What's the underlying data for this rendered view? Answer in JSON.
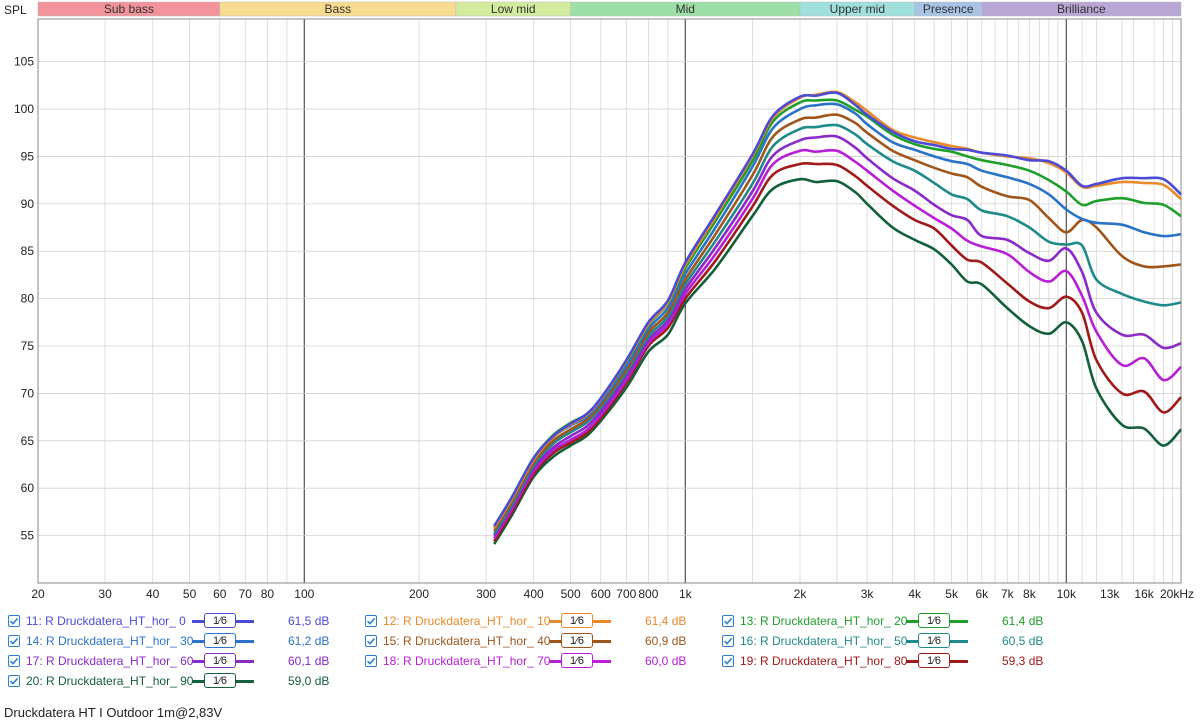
{
  "chart_data": {
    "type": "line",
    "ylabel": "SPL",
    "xscale": "log",
    "xlim": [
      20,
      20000
    ],
    "ylim": [
      50,
      109.5
    ],
    "yticks": [
      55,
      60,
      65,
      70,
      75,
      80,
      85,
      90,
      95,
      100,
      105
    ],
    "xticks": [
      {
        "v": 20,
        "label": "20"
      },
      {
        "v": 30,
        "label": "30"
      },
      {
        "v": 40,
        "label": "40"
      },
      {
        "v": 50,
        "label": "50"
      },
      {
        "v": 60,
        "label": "60"
      },
      {
        "v": 70,
        "label": "70"
      },
      {
        "v": 80,
        "label": "80"
      },
      {
        "v": 100,
        "label": "100"
      },
      {
        "v": 200,
        "label": "200"
      },
      {
        "v": 300,
        "label": "300"
      },
      {
        "v": 400,
        "label": "400"
      },
      {
        "v": 500,
        "label": "500"
      },
      {
        "v": 600,
        "label": "600"
      },
      {
        "v": 700,
        "label": "700"
      },
      {
        "v": 800,
        "label": "800"
      },
      {
        "v": 1000,
        "label": "1k"
      },
      {
        "v": 2000,
        "label": "2k"
      },
      {
        "v": 3000,
        "label": "3k"
      },
      {
        "v": 4000,
        "label": "4k"
      },
      {
        "v": 5000,
        "label": "5k"
      },
      {
        "v": 6000,
        "label": "6k"
      },
      {
        "v": 7000,
        "label": "7k"
      },
      {
        "v": 8000,
        "label": "8k"
      },
      {
        "v": 10000,
        "label": "10k"
      },
      {
        "v": 13000,
        "label": "13k"
      },
      {
        "v": 16000,
        "label": "16k"
      },
      {
        "v": 20000,
        "label": "20kHz"
      }
    ],
    "bands": [
      {
        "name": "Sub bass",
        "from": 20,
        "to": 60,
        "color": "#f2939b"
      },
      {
        "name": "Bass",
        "from": 60,
        "to": 250,
        "color": "#f7dc8f"
      },
      {
        "name": "Low mid",
        "from": 250,
        "to": 500,
        "color": "#d3eb9c"
      },
      {
        "name": "Mid",
        "from": 500,
        "to": 2000,
        "color": "#9ddfa7"
      },
      {
        "name": "Upper mid",
        "from": 2000,
        "to": 4000,
        "color": "#9fdfdc"
      },
      {
        "name": "Presence",
        "from": 4000,
        "to": 6000,
        "color": "#a9c3e7"
      },
      {
        "name": "Brilliance",
        "from": 6000,
        "to": 20000,
        "color": "#b8a7d4"
      }
    ],
    "x": [
      315,
      350,
      400,
      450,
      500,
      550,
      600,
      700,
      800,
      900,
      1000,
      1200,
      1500,
      1700,
      2000,
      2200,
      2500,
      2800,
      3000,
      3500,
      4000,
      4500,
      5000,
      5500,
      6000,
      7000,
      8000,
      9000,
      10000,
      11000,
      12000,
      14000,
      16000,
      18000,
      20000
    ],
    "series": [
      {
        "name": "11: R Druckdatera_HT_hor_ 0",
        "color": "#4b4bd6",
        "db": "61,5 dB",
        "values": [
          56.0,
          59.0,
          63.2,
          65.5,
          66.8,
          67.8,
          69.5,
          73.5,
          77.5,
          79.8,
          83.8,
          88.9,
          95.2,
          99.3,
          101.3,
          101.4,
          101.7,
          100.4,
          99.4,
          97.6,
          96.6,
          96.2,
          95.8,
          95.7,
          95.4,
          95.1,
          94.6,
          94.5,
          93.5,
          91.9,
          92.1,
          92.7,
          92.7,
          92.6,
          91.0
        ]
      },
      {
        "name": "12: R Druckdatera_HT_hor_ 10",
        "color": "#e8892a",
        "db": "61,4 dB",
        "values": [
          55.8,
          58.8,
          63.0,
          65.4,
          66.7,
          67.7,
          69.4,
          73.4,
          77.3,
          79.6,
          83.5,
          88.6,
          95.0,
          99.1,
          101.2,
          101.5,
          101.8,
          100.7,
          99.8,
          97.8,
          97.0,
          96.5,
          96.1,
          95.8,
          95.4,
          95.0,
          94.8,
          94.3,
          93.3,
          91.8,
          91.9,
          92.3,
          92.2,
          92.0,
          90.5
        ]
      },
      {
        "name": "13: R Druckdatera_HT_hor_ 20",
        "color": "#1e9e2a",
        "db": "61,4 dB",
        "values": [
          56.0,
          59.0,
          63.2,
          65.6,
          66.9,
          67.8,
          69.4,
          73.3,
          77.2,
          79.5,
          83.2,
          88.2,
          94.5,
          98.7,
          100.7,
          100.9,
          100.9,
          99.9,
          99.2,
          97.3,
          96.3,
          95.8,
          95.5,
          95.0,
          94.6,
          94.1,
          93.5,
          92.5,
          91.3,
          89.9,
          90.3,
          90.6,
          90.1,
          89.9,
          88.7
        ]
      },
      {
        "name": "14: R Druckdatera_HT_hor_ 30",
        "color": "#2a73c8",
        "db": "61,2 dB",
        "values": [
          55.8,
          58.8,
          63.0,
          65.4,
          66.6,
          67.5,
          69.1,
          72.9,
          76.8,
          79.0,
          82.6,
          87.5,
          93.9,
          98.0,
          100.0,
          100.4,
          100.5,
          99.5,
          98.4,
          96.5,
          95.7,
          95.0,
          94.5,
          94.2,
          93.5,
          92.8,
          92.1,
          91.0,
          89.4,
          88.4,
          88.0,
          87.8,
          87.0,
          86.6,
          86.8
        ]
      },
      {
        "name": "15: R Druckdatera_HT_hor_ 40",
        "color": "#a0561b",
        "db": "60,9 dB",
        "values": [
          55.5,
          58.5,
          62.7,
          65.0,
          66.2,
          67.2,
          68.8,
          72.5,
          76.4,
          78.5,
          82.0,
          86.8,
          93.0,
          97.1,
          98.9,
          99.1,
          99.4,
          98.5,
          97.5,
          95.6,
          94.6,
          93.8,
          93.2,
          92.8,
          91.8,
          90.8,
          90.4,
          88.5,
          87.0,
          88.3,
          87.5,
          84.5,
          83.4,
          83.4,
          83.6
        ]
      },
      {
        "name": "16: R Druckdatera_HT_hor_ 50",
        "color": "#1f8a8a",
        "db": "60,5 dB",
        "values": [
          55.2,
          58.2,
          62.4,
          64.7,
          65.9,
          66.9,
          68.5,
          72.2,
          76.0,
          78.1,
          81.5,
          86.1,
          92.1,
          96.1,
          97.9,
          98.1,
          98.3,
          97.3,
          96.3,
          94.5,
          93.5,
          92.2,
          91.0,
          90.5,
          89.3,
          88.7,
          87.5,
          86.0,
          85.7,
          85.6,
          82.0,
          80.5,
          79.7,
          79.3,
          79.6
        ]
      },
      {
        "name": "17: R Druckdatera_HT_hor_ 60",
        "color": "#8a2ac8",
        "db": "60,1 dB",
        "values": [
          55.0,
          58.0,
          62.1,
          64.3,
          65.5,
          66.5,
          68.1,
          71.8,
          75.6,
          77.7,
          81.0,
          85.4,
          91.3,
          95.1,
          96.7,
          97.0,
          97.1,
          95.9,
          94.8,
          92.7,
          91.4,
          89.9,
          88.8,
          88.3,
          86.6,
          86.2,
          84.8,
          84.0,
          85.3,
          82.8,
          78.5,
          76.2,
          76.2,
          74.8,
          75.3
        ]
      },
      {
        "name": "18: R Druckdatera_HT_hor_ 70",
        "color": "#b81ed6",
        "db": "60,0 dB",
        "values": [
          54.7,
          57.7,
          61.8,
          64.0,
          65.1,
          66.1,
          67.7,
          71.4,
          75.3,
          77.3,
          80.5,
          84.7,
          90.5,
          94.2,
          95.6,
          95.5,
          95.6,
          94.4,
          93.5,
          91.4,
          89.8,
          88.5,
          87.4,
          86.1,
          85.5,
          84.7,
          82.8,
          81.8,
          82.9,
          80.3,
          76.5,
          73.0,
          73.7,
          71.4,
          72.8
        ]
      },
      {
        "name": "19: R Druckdatera_HT_hor_ 80",
        "color": "#a01a1a",
        "db": "59,3 dB",
        "values": [
          54.4,
          57.4,
          61.5,
          63.7,
          64.8,
          65.8,
          67.4,
          71.1,
          75.0,
          76.9,
          80.0,
          84.0,
          89.7,
          93.1,
          94.2,
          94.2,
          94.1,
          92.9,
          91.9,
          89.8,
          88.3,
          87.4,
          85.6,
          84.1,
          83.8,
          81.6,
          79.7,
          79.0,
          80.2,
          78.5,
          73.5,
          70.0,
          70.2,
          68.0,
          69.6
        ]
      },
      {
        "name": "20: R Druckdatera_HT_hor_ 90",
        "color": "#12603a",
        "db": "59,0 dB",
        "values": [
          54.1,
          57.1,
          61.2,
          63.3,
          64.5,
          65.5,
          67.1,
          70.6,
          74.4,
          76.2,
          79.5,
          83.2,
          88.7,
          91.6,
          92.6,
          92.3,
          92.4,
          91.2,
          90.0,
          87.5,
          86.2,
          85.2,
          83.6,
          81.8,
          81.5,
          79.0,
          77.1,
          76.3,
          77.5,
          75.5,
          70.5,
          66.7,
          66.3,
          64.5,
          66.2
        ]
      }
    ],
    "legend_smoothing": "1⁄6"
  },
  "footer_title": "Druckdatera HT I Outdoor 1m@2,83V"
}
